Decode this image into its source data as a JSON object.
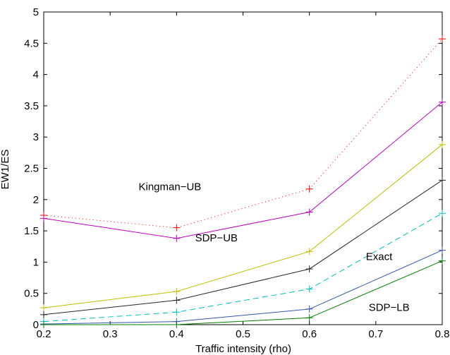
{
  "chart_data": {
    "type": "line",
    "xlabel": "Traffic intensity (rho)",
    "ylabel": "EW1/ES",
    "xlim": [
      0.2,
      0.8
    ],
    "ylim": [
      0,
      5
    ],
    "xticks": [
      "0.2",
      "0.3",
      "0.4",
      "0.5",
      "0.6",
      "0.7",
      "0.8"
    ],
    "yticks": [
      "0",
      "0.5",
      "1",
      "1.5",
      "2",
      "2.5",
      "3",
      "3.5",
      "4",
      "4.5",
      "5"
    ],
    "grid": false,
    "x": [
      0.2,
      0.4,
      0.6,
      0.8
    ],
    "series": [
      {
        "values": [
          1.75,
          1.55,
          2.17,
          4.57
        ],
        "color": "#ff0000",
        "dash": "1 4"
      },
      {
        "values": [
          1.7,
          1.38,
          1.8,
          3.56
        ],
        "color": "#bf00bf",
        "dash": ""
      },
      {
        "values": [
          0.27,
          0.53,
          1.17,
          2.88
        ],
        "color": "#bfbf00",
        "dash": ""
      },
      {
        "values": [
          0.16,
          0.39,
          0.89,
          2.31
        ],
        "color": "#262626",
        "dash": ""
      },
      {
        "values": [
          0.05,
          0.2,
          0.57,
          1.78
        ],
        "color": "#00bfbf",
        "dash": "8 5"
      },
      {
        "values": [
          0.01,
          0.05,
          0.25,
          1.19
        ],
        "color": "#3355aa",
        "dash": ""
      },
      {
        "values": [
          0.0,
          0.0,
          0.11,
          1.02
        ],
        "color": "#008000",
        "dash": ""
      }
    ],
    "annotations": [
      {
        "text": "Kingman−UB",
        "x": 0.39,
        "y": 2.15
      },
      {
        "text": "SDP−UB",
        "x": 0.46,
        "y": 1.33
      },
      {
        "text": "Exact",
        "x": 0.705,
        "y": 1.03
      },
      {
        "text": "SDP−LB",
        "x": 0.72,
        "y": 0.22
      }
    ]
  }
}
